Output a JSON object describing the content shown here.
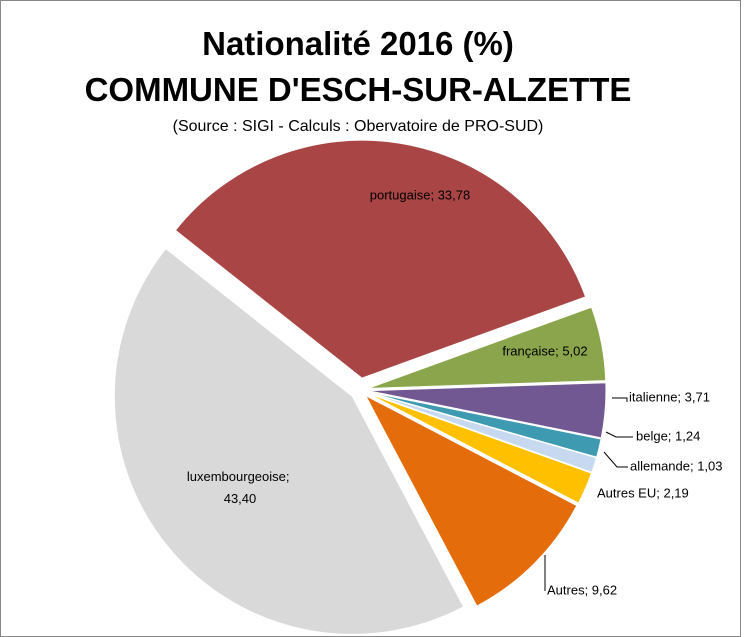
{
  "chart_data": {
    "type": "pie",
    "title": [
      "Nationalité 2016 (%)",
      "COMMUNE D'ESCH-SUR-ALZETTE"
    ],
    "subtitle": "(Source : SIGI - Calculs : Obervatoire de PRO-SUD)",
    "values": [
      33.78,
      5.02,
      3.71,
      1.24,
      1.03,
      2.19,
      9.62,
      43.4
    ],
    "value_labels": [
      "portugaise; 33,78",
      "française; 5,02",
      "italienne; 3,71",
      "belge; 1,24",
      "allemande; 1,03",
      "Autres EU; 2,19",
      "Autres; 9,62",
      "luxembourgeoise; 43,40"
    ],
    "colors": [
      "#a94645",
      "#8aa54b",
      "#725893",
      "#3d9ab0",
      "#c6d9f1",
      "#ffc000",
      "#e46c0a",
      "#d9d9d9"
    ]
  }
}
